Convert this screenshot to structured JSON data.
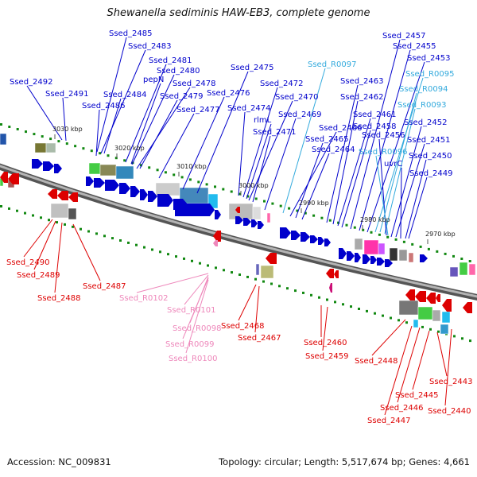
{
  "title": "Shewanella sediminis HAW-EB3, complete genome",
  "footer": {
    "accession": "Accession: NC_009831",
    "summary": "Topology: circular; Length: 5,517,674 bp; Genes: 4,661"
  },
  "colors": {
    "forward": "#0000cc",
    "reverse": "#dd0000",
    "rna_forward": "#33aadd",
    "rna_reverse": "#ee88bb",
    "backbone": "#888888",
    "tick": "#118811"
  },
  "tick_labels": [
    "3030 kbp",
    "3020 kbp",
    "3010 kbp",
    "3000 kbp",
    "2990 kbp",
    "2980 kbp",
    "2970 kbp"
  ],
  "top_labels": [
    "Ssed_2492",
    "Ssed_2491",
    "Ssed_2486",
    "Ssed_2485",
    "Ssed_2483",
    "Ssed_2484",
    "Ssed_2481",
    "pepN",
    "Ssed_2480",
    "Ssed_2478",
    "Ssed_2479",
    "Ssed_2477",
    "Ssed_2476",
    "Ssed_2475",
    "Ssed_2474",
    "Ssed_2472",
    "rlmL",
    "Ssed_2470",
    "Ssed_2471",
    "Ssed_2469",
    "Ssed_R0097",
    "Ssed_2466",
    "Ssed_2465",
    "Ssed_2464",
    "Ssed_2463",
    "Ssed_2462",
    "Ssed_2461",
    "Ssed_2458",
    "Ssed_2457",
    "Ssed_2455",
    "Ssed_2453",
    "Ssed_R0095",
    "Ssed_R0094",
    "Ssed_R0093",
    "Ssed_2456",
    "Ssed_R0096",
    "Ssed_2452",
    "Ssed_2451",
    "uvrC",
    "Ssed_2450",
    "Ssed_2449"
  ],
  "bottom_labels": [
    "Ssed_2490",
    "Ssed_2489",
    "Ssed_2488",
    "Ssed_2487",
    "Ssed_R0102",
    "Ssed_R0101",
    "Ssed_R0098",
    "Ssed_R0099",
    "Ssed_R0100",
    "Ssed_2468",
    "Ssed_2467",
    "Ssed_2460",
    "Ssed_2459",
    "Ssed_2448",
    "Ssed_2443",
    "Ssed_2445",
    "Ssed_2446",
    "Ssed_2447",
    "Ssed_2440"
  ]
}
